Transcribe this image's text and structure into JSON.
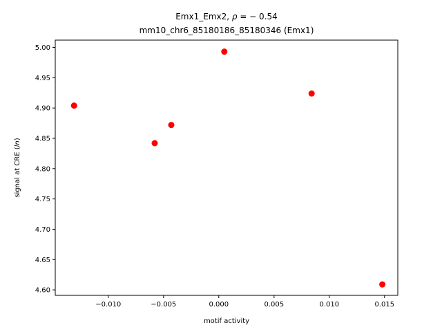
{
  "chart_data": {
    "type": "scatter",
    "title_line1_prefix": "Emx1_Emx2, ",
    "title_rho_symbol": "ρ",
    "title_rho_value": " = − 0.54",
    "title_line2": "mm10_chr6_85180186_85180346 (Emx1)",
    "xlabel": "motif activity",
    "ylabel_prefix": "signal at CRE (",
    "ylabel_italic": "ln",
    "ylabel_suffix": ")",
    "xlim": [
      -0.0148,
      0.0162
    ],
    "ylim": [
      4.591,
      5.012
    ],
    "x_ticks": [
      -0.01,
      -0.005,
      0.0,
      0.005,
      0.01,
      0.015
    ],
    "x_tick_labels": [
      "−0.010",
      "−0.005",
      "0.000",
      "0.005",
      "0.010",
      "0.015"
    ],
    "y_ticks": [
      4.6,
      4.65,
      4.7,
      4.75,
      4.8,
      4.85,
      4.9,
      4.95,
      5.0
    ],
    "y_tick_labels": [
      "4.60",
      "4.65",
      "4.70",
      "4.75",
      "4.80",
      "4.85",
      "4.90",
      "4.95",
      "5.00"
    ],
    "marker_color": "#ff0000",
    "points": [
      {
        "x": -0.0131,
        "y": 4.904
      },
      {
        "x": -0.0058,
        "y": 4.842
      },
      {
        "x": -0.0043,
        "y": 4.872
      },
      {
        "x": 0.0005,
        "y": 4.993
      },
      {
        "x": 0.0084,
        "y": 4.924
      },
      {
        "x": 0.0148,
        "y": 4.609
      }
    ]
  }
}
